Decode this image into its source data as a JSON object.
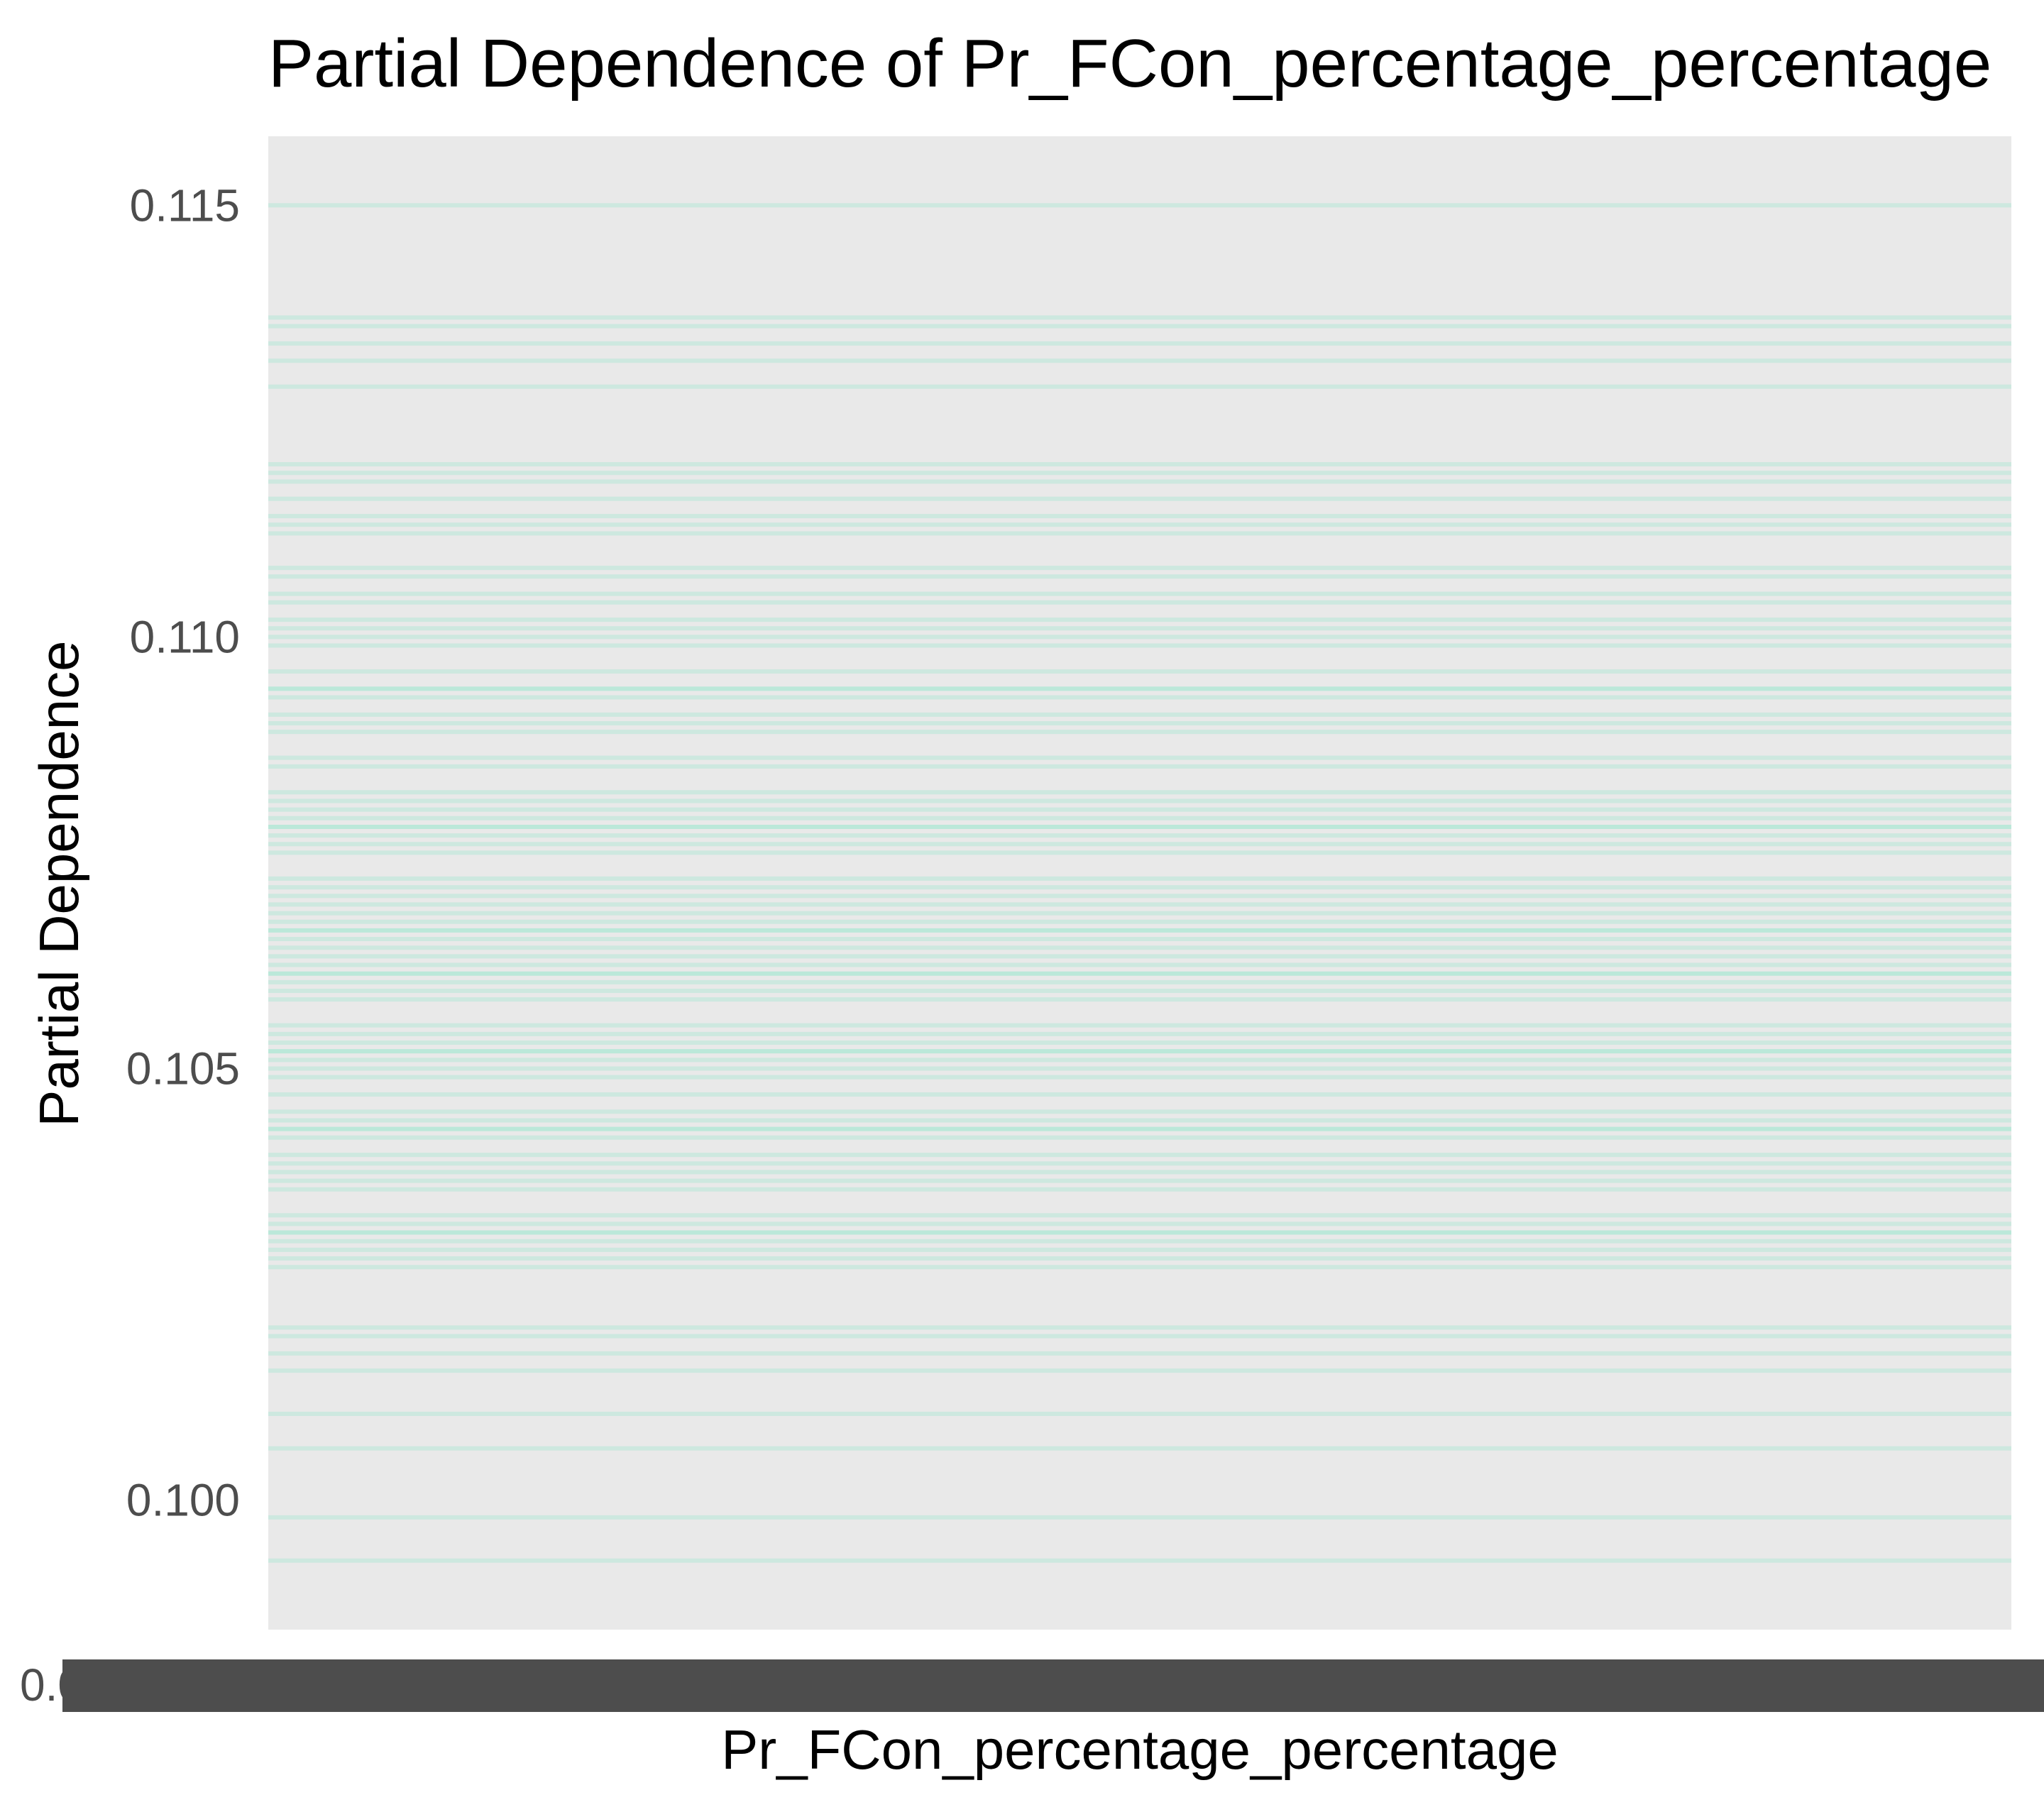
{
  "chart_data": {
    "type": "line",
    "title": "Partial Dependence of Pr_FCon_percentage_percentage",
    "xlabel": "Pr_FCon_percentage_percentage",
    "ylabel": "Partial Dependence",
    "ylim": [
      0.0985,
      0.1158
    ],
    "yticks": [
      0.1,
      0.105,
      0.11,
      0.115
    ],
    "ytick_labels": [
      "0.100",
      "0.105",
      "0.110",
      "0.115"
    ],
    "x_tick_first_label": "0.0",
    "x_tick_labels_overlapping": true,
    "grid": false,
    "background": "#e9e9e9",
    "line_color": "#9be8cf",
    "line_opacity": 0.35,
    "series_values": [
      0.115,
      0.1137,
      0.1136,
      0.1134,
      0.1132,
      0.1129,
      0.112,
      0.1119,
      0.1118,
      0.1116,
      0.1114,
      0.1113,
      0.1112,
      0.1108,
      0.1107,
      0.1105,
      0.1104,
      0.1102,
      0.1101,
      0.11,
      0.1099,
      0.1096,
      0.1094,
      0.1094,
      0.1093,
      0.1091,
      0.109,
      0.1089,
      0.1086,
      0.1085,
      0.1082,
      0.1081,
      0.108,
      0.1079,
      0.1078,
      0.1078,
      0.1077,
      0.1076,
      0.1075,
      0.1072,
      0.1071,
      0.107,
      0.1069,
      0.1068,
      0.1067,
      0.1066,
      0.1066,
      0.1065,
      0.1064,
      0.1063,
      0.1062,
      0.1061,
      0.1061,
      0.106,
      0.1059,
      0.1058,
      0.1055,
      0.1054,
      0.1053,
      0.1052,
      0.1052,
      0.1051,
      0.105,
      0.1049,
      0.1047,
      0.1045,
      0.1044,
      0.1043,
      0.1043,
      0.1042,
      0.104,
      0.1039,
      0.1038,
      0.1037,
      0.1036,
      0.1033,
      0.1032,
      0.1031,
      0.1031,
      0.103,
      0.1029,
      0.1028,
      0.1027,
      0.102,
      0.1019,
      0.1017,
      0.1015,
      0.101,
      0.1006,
      0.0998,
      0.0993
    ]
  }
}
